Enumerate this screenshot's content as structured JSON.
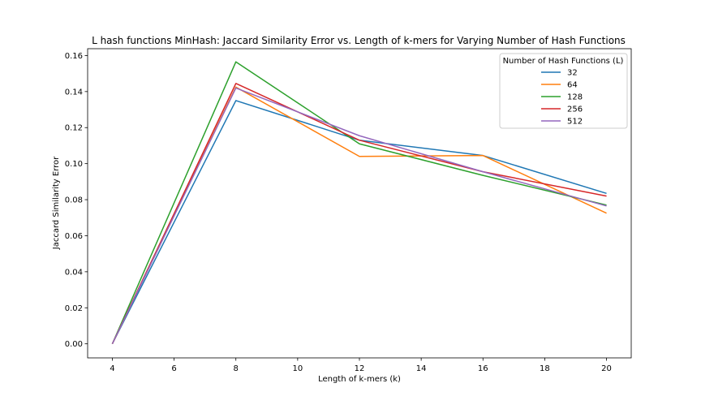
{
  "chart_data": {
    "type": "line",
    "title": "L hash functions MinHash: Jaccard Similarity Error vs. Length of k-mers for Varying Number of Hash Functions",
    "xlabel": "Length of k-mers (k)",
    "ylabel": "Jaccard Similarity Error",
    "xlim": [
      3.2,
      20.8
    ],
    "ylim": [
      -0.0078,
      0.1638
    ],
    "xticks": [
      4,
      6,
      8,
      10,
      12,
      14,
      16,
      18,
      20
    ],
    "yticks": [
      0.0,
      0.02,
      0.04,
      0.06,
      0.08,
      0.1,
      0.12,
      0.14,
      0.16
    ],
    "xtick_labels": [
      "4",
      "6",
      "8",
      "10",
      "12",
      "14",
      "16",
      "18",
      "20"
    ],
    "ytick_labels": [
      "0.00",
      "0.02",
      "0.04",
      "0.06",
      "0.08",
      "0.10",
      "0.12",
      "0.14",
      "0.16"
    ],
    "x": [
      4,
      8,
      12,
      16,
      20
    ],
    "grid": false,
    "legend_title": "Number of Hash Functions (L)",
    "legend_position": "top-right",
    "series": [
      {
        "name": "32",
        "color": "#1f77b4",
        "values": [
          0.0,
          0.135,
          0.113,
          0.1045,
          0.0835
        ]
      },
      {
        "name": "64",
        "color": "#ff7f0e",
        "values": [
          0.0,
          0.1425,
          0.104,
          0.1045,
          0.0725
        ]
      },
      {
        "name": "128",
        "color": "#2ca02c",
        "values": [
          0.0,
          0.1565,
          0.111,
          0.0935,
          0.077
        ]
      },
      {
        "name": "256",
        "color": "#d62728",
        "values": [
          0.0,
          0.1445,
          0.113,
          0.0955,
          0.082
        ]
      },
      {
        "name": "512",
        "color": "#9467bd",
        "values": [
          0.0,
          0.142,
          0.1155,
          0.0955,
          0.0765
        ]
      }
    ]
  }
}
